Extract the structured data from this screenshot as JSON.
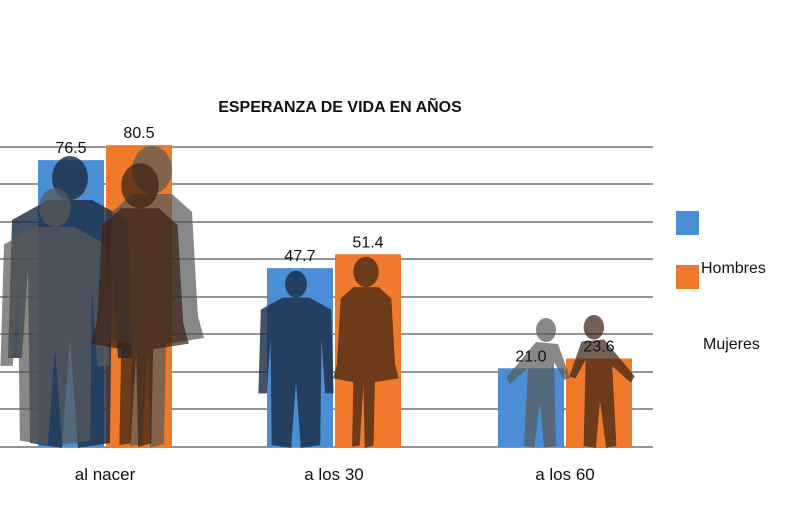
{
  "chart_data": {
    "type": "bar",
    "title": "ESPERANZA DE VIDA EN AÑOS",
    "categories": [
      "al nacer",
      "a los 30",
      "a los 60"
    ],
    "series": [
      {
        "name": "Hombres",
        "values": [
          76.5,
          47.7,
          21.0
        ],
        "value_labels": [
          "76.5",
          "47.7",
          "21.0"
        ],
        "color": "#4a8fd6"
      },
      {
        "name": "Mujeres",
        "values": [
          80.5,
          51.4,
          23.6
        ],
        "value_labels": [
          "80.5",
          "51.4",
          "23.6"
        ],
        "color": "#f07a2c"
      }
    ],
    "ylim": [
      0,
      80
    ],
    "grid": true,
    "legend_position": "right",
    "silhouettes": [
      "man",
      "woman",
      "man",
      "woman",
      "elderly-man",
      "elderly-woman"
    ]
  }
}
